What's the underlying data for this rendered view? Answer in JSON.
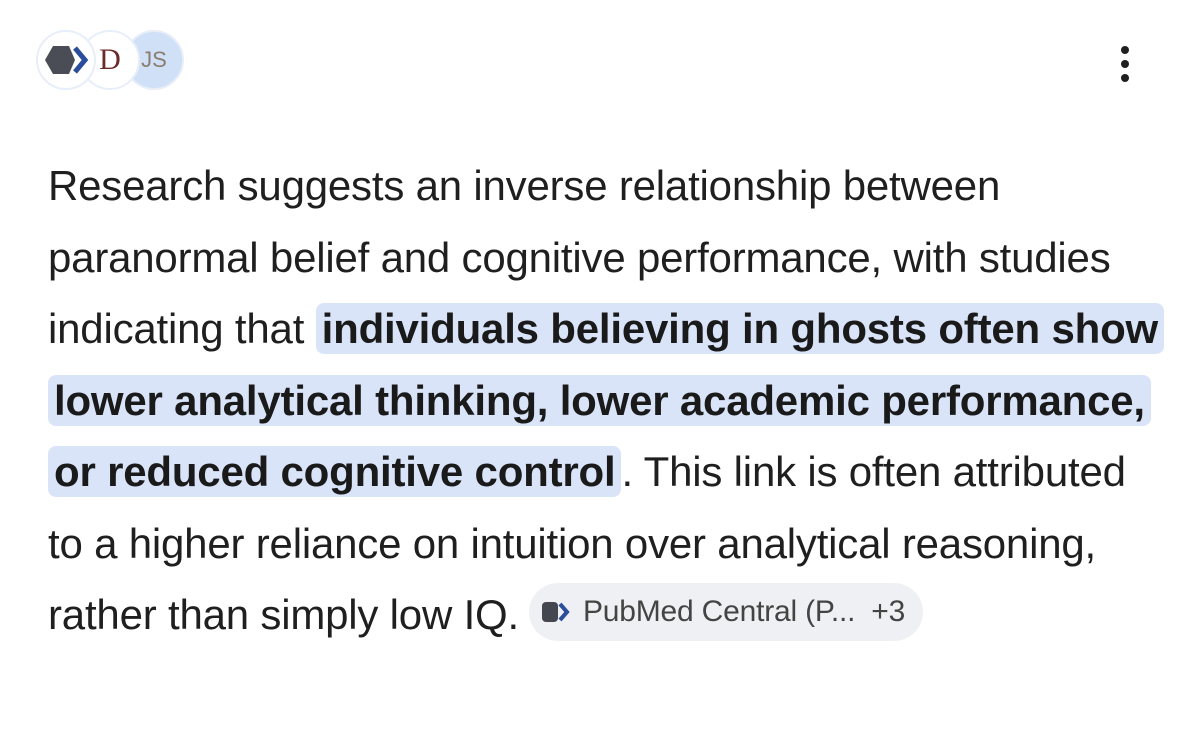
{
  "header": {
    "source_icons": [
      "D",
      "JS"
    ]
  },
  "answer": {
    "text_before": "Research suggests an inverse relationship between paranormal belief and cognitive performance, with studies indicating that ",
    "highlight": "individuals believing in ghosts often show lower analytical thinking, lower academic performance, or reduced cognitive control",
    "text_after": ". This link is often attributed to a higher reliance on intuition over analytical reasoning, rather than simply low IQ.",
    "citation": {
      "label": "PubMed Central (P...",
      "more": "+3"
    }
  }
}
